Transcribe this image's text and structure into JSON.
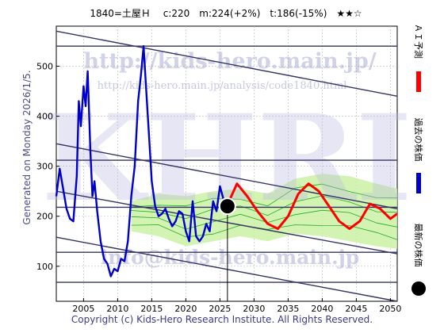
{
  "title": "1840=土屋Ｈ　 c:220　m:224(+2%)　t:186(-15%)　★★☆",
  "generated_label": "Generated on Monday 2026/1/5.",
  "copyright": "Copyright (c) Kids-Hero Research Institute. All Rights Reserved.",
  "watermarks": {
    "url": "http://kids-hero.main.jp/",
    "analysis_url": "http://kids-hero.main.jp/analysis/code1840.html",
    "brand": "KHRI",
    "email": "info@kids-hero.main.jp"
  },
  "legend": [
    {
      "label": "ＡＩ予測",
      "color": "#ff0000"
    },
    {
      "label": "過去の株価",
      "color": "#0000cc"
    },
    {
      "label": "最新の株価",
      "color": "#000000"
    }
  ],
  "colors": {
    "ai_prediction": "#ff0000",
    "past_price": "#0000cc",
    "latest_price": "#000000",
    "band_fill": "#c8f0a0",
    "band_lines": "#22aa22",
    "channel_lines": "#333366",
    "grid": "#bbbbbb"
  },
  "chart_data": {
    "type": "line",
    "xlim": [
      2001,
      2051
    ],
    "ylim": [
      30,
      580
    ],
    "xticks": [
      2005,
      2010,
      2015,
      2020,
      2025,
      2030,
      2035,
      2040,
      2045,
      2050
    ],
    "yticks": [
      100,
      200,
      300,
      400,
      500
    ],
    "grid": true,
    "series": [
      {
        "key": "past_price",
        "x": [
          2001.0,
          2001.5,
          2002.0,
          2002.5,
          2003.0,
          2003.5,
          2004.0,
          2004.3,
          2004.6,
          2005.0,
          2005.3,
          2005.6,
          2006.0,
          2006.3,
          2006.6,
          2007.0,
          2007.5,
          2008.0,
          2008.5,
          2009.0,
          2009.5,
          2010.0,
          2010.5,
          2011.0,
          2011.5,
          2012.0,
          2012.5,
          2013.0,
          2013.4,
          2013.8,
          2014.2,
          2014.6,
          2015.0,
          2015.5,
          2016.0,
          2016.5,
          2017.0,
          2017.5,
          2018.0,
          2018.5,
          2019.0,
          2019.5,
          2020.0,
          2020.5,
          2021.0,
          2021.5,
          2022.0,
          2022.5,
          2023.0,
          2023.5,
          2024.0,
          2024.5,
          2025.0,
          2025.5,
          2026.0
        ],
        "y": [
          240,
          295,
          255,
          215,
          195,
          190,
          280,
          430,
          380,
          460,
          420,
          490,
          330,
          240,
          270,
          210,
          150,
          115,
          105,
          80,
          95,
          90,
          115,
          110,
          150,
          240,
          300,
          430,
          480,
          540,
          450,
          360,
          270,
          220,
          200,
          205,
          215,
          195,
          180,
          190,
          210,
          205,
          170,
          150,
          230,
          160,
          150,
          160,
          185,
          170,
          230,
          210,
          260,
          235,
          220
        ]
      },
      {
        "key": "ai_prediction",
        "x": [
          2026.0,
          2027.5,
          2029.0,
          2030.5,
          2032.0,
          2033.5,
          2035.0,
          2036.5,
          2038.0,
          2039.5,
          2041.0,
          2042.5,
          2044.0,
          2045.5,
          2047.0,
          2048.5,
          2050.0,
          2051.0
        ],
        "y": [
          220,
          265,
          240,
          210,
          185,
          175,
          200,
          245,
          265,
          250,
          220,
          190,
          175,
          190,
          225,
          215,
          195,
          205
        ]
      }
    ],
    "latest_point": {
      "x": 2026.1,
      "y": 220
    },
    "channel_lines": [
      {
        "x": [
          2001,
          2051
        ],
        "y": [
          570,
          440
        ]
      },
      {
        "x": [
          2001,
          2051
        ],
        "y": [
          345,
          215
        ]
      },
      {
        "x": [
          2001,
          2051
        ],
        "y": [
          250,
          125
        ]
      },
      {
        "x": [
          2001,
          2051
        ],
        "y": [
          158,
          30
        ]
      },
      {
        "x": [
          2001,
          2051
        ],
        "y": [
          540,
          540
        ]
      },
      {
        "x": [
          2001,
          2051
        ],
        "y": [
          312,
          312
        ]
      },
      {
        "x": [
          2001,
          2051
        ],
        "y": [
          128,
          128
        ]
      },
      {
        "x": [
          2001,
          2051
        ],
        "y": [
          68,
          68
        ]
      },
      {
        "x": [
          2001,
          2051
        ],
        "y": [
          218,
          218
        ]
      }
    ],
    "band": {
      "x": [
        2012,
        2016,
        2020,
        2024,
        2028,
        2032,
        2036,
        2040,
        2044,
        2048,
        2051
      ],
      "upper": [
        230,
        245,
        240,
        250,
        255,
        245,
        275,
        285,
        280,
        265,
        255
      ],
      "lower": [
        170,
        160,
        140,
        150,
        160,
        150,
        165,
        160,
        150,
        140,
        135
      ]
    }
  }
}
